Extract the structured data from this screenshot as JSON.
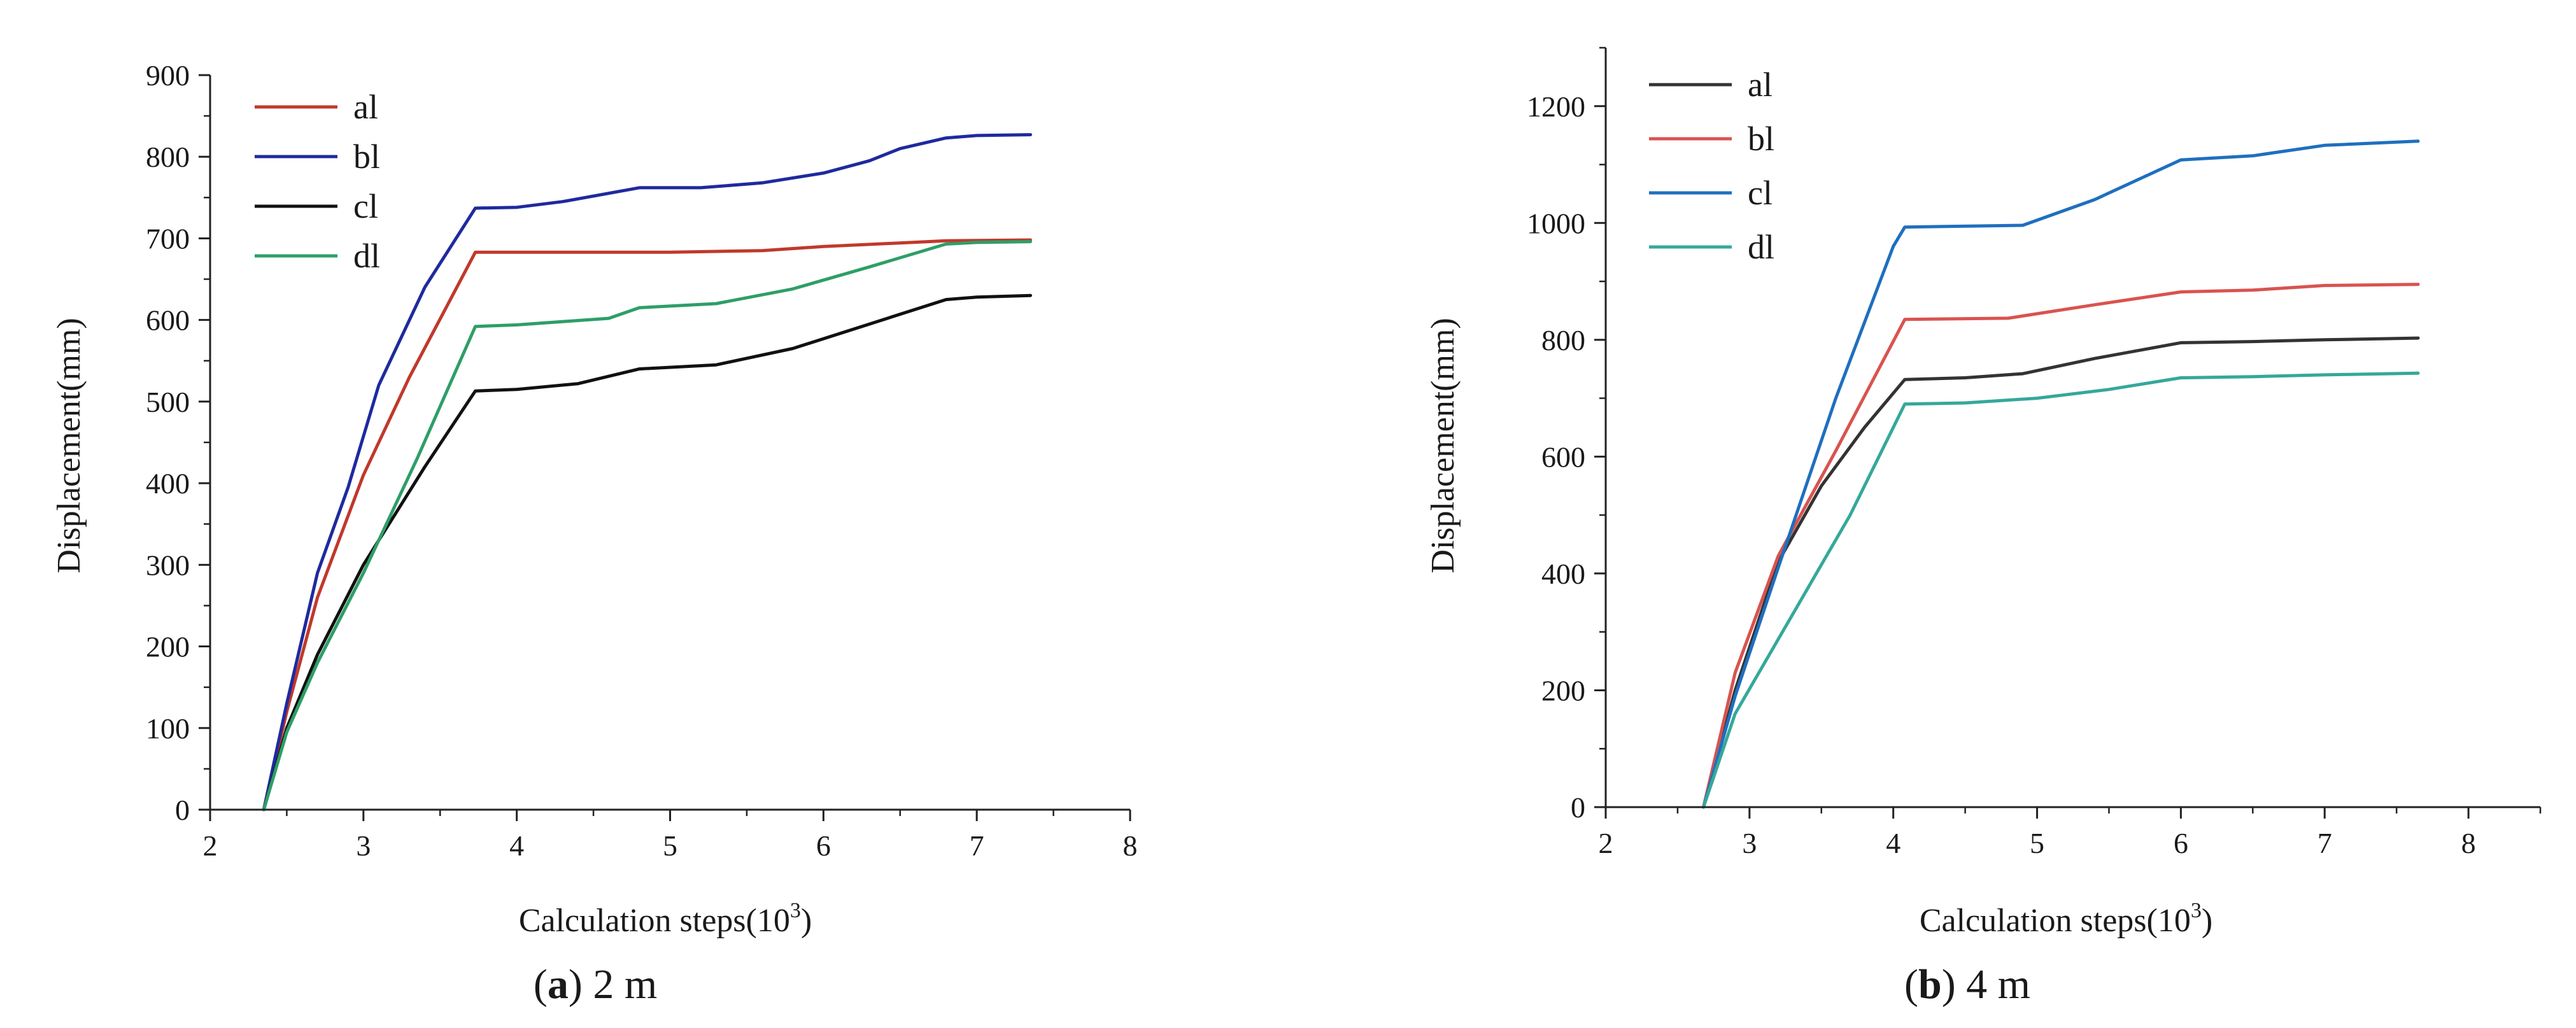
{
  "chart_data": [
    {
      "type": "line",
      "title": "",
      "caption_letter": "a",
      "caption_rest": " 2 m",
      "xlabel": "Calculation steps(10",
      "xlabel_exponent": "3",
      "xlabel_suffix": ")",
      "ylabel": "Displacement(mm)",
      "xlim": [
        2,
        8
      ],
      "ylim": [
        0,
        900
      ],
      "xticks": [
        2,
        3,
        4,
        5,
        6,
        7,
        8
      ],
      "yticks": [
        0,
        100,
        200,
        300,
        400,
        500,
        600,
        700,
        800,
        900
      ],
      "grid": false,
      "legend_position": "top-left",
      "series": [
        {
          "name": "al",
          "color": "#c0392b",
          "x": [
            2.35,
            2.5,
            2.7,
            3.0,
            3.3,
            3.73,
            4.0,
            5.0,
            5.6,
            6.0,
            6.8,
            7.35
          ],
          "values": [
            0,
            120,
            260,
            410,
            530,
            683,
            683,
            683,
            685,
            690,
            697,
            698
          ]
        },
        {
          "name": "bl",
          "color": "#1f2a9e",
          "x": [
            2.35,
            2.5,
            2.7,
            2.9,
            3.1,
            3.4,
            3.73,
            4.0,
            4.3,
            4.8,
            5.2,
            5.6,
            6.0,
            6.3,
            6.5,
            6.8,
            7.0,
            7.35
          ],
          "values": [
            0,
            130,
            290,
            395,
            520,
            640,
            737,
            738,
            745,
            762,
            762,
            768,
            780,
            795,
            810,
            823,
            826,
            827
          ]
        },
        {
          "name": "cl",
          "color": "#111111",
          "x": [
            2.35,
            2.5,
            2.7,
            3.0,
            3.4,
            3.73,
            4.0,
            4.4,
            4.8,
            5.3,
            5.8,
            6.3,
            6.8,
            7.0,
            7.35
          ],
          "values": [
            0,
            100,
            190,
            300,
            420,
            513,
            515,
            522,
            540,
            545,
            565,
            595,
            625,
            628,
            630
          ]
        },
        {
          "name": "dl",
          "color": "#2e9e68",
          "x": [
            2.35,
            2.5,
            2.7,
            3.0,
            3.35,
            3.73,
            4.0,
            4.6,
            4.8,
            5.3,
            5.8,
            6.3,
            6.8,
            7.0,
            7.35
          ],
          "values": [
            0,
            95,
            180,
            290,
            430,
            592,
            594,
            602,
            615,
            620,
            638,
            665,
            693,
            695,
            696
          ]
        }
      ]
    },
    {
      "type": "line",
      "title": "",
      "caption_letter": "b",
      "caption_rest": " 4 m",
      "xlabel": "Calculation steps(10",
      "xlabel_exponent": "3",
      "xlabel_suffix": ")",
      "ylabel": "Displacement(mm)",
      "xlim": [
        2,
        8.5
      ],
      "ylim": [
        0,
        1300
      ],
      "xticks": [
        2,
        3,
        4,
        5,
        6,
        7,
        8
      ],
      "yticks": [
        0,
        200,
        400,
        600,
        800,
        1000,
        1200
      ],
      "grid": false,
      "legend_position": "top-left",
      "series": [
        {
          "name": "al",
          "color": "#333333",
          "x": [
            2.68,
            2.9,
            3.2,
            3.5,
            3.8,
            4.08,
            4.5,
            4.9,
            5.4,
            6.0,
            6.5,
            7.0,
            7.65
          ],
          "values": [
            0,
            200,
            420,
            550,
            650,
            732,
            735,
            742,
            768,
            795,
            797,
            800,
            803
          ]
        },
        {
          "name": "bl",
          "color": "#d9534f",
          "x": [
            2.68,
            2.9,
            3.2,
            3.6,
            4.08,
            4.8,
            5.4,
            6.0,
            6.5,
            7.0,
            7.65
          ],
          "values": [
            0,
            230,
            430,
            610,
            835,
            837,
            860,
            882,
            885,
            893,
            895
          ]
        },
        {
          "name": "cl",
          "color": "#1f6fbf",
          "x": [
            2.68,
            2.9,
            3.2,
            3.6,
            4.0,
            4.08,
            4.9,
            5.4,
            6.0,
            6.5,
            7.0,
            7.65
          ],
          "values": [
            0,
            190,
            410,
            700,
            960,
            993,
            996,
            1040,
            1108,
            1115,
            1133,
            1140
          ]
        },
        {
          "name": "dl",
          "color": "#35a89a",
          "x": [
            2.68,
            2.9,
            3.3,
            3.7,
            4.08,
            4.5,
            5.0,
            5.5,
            6.0,
            6.5,
            7.0,
            7.65
          ],
          "values": [
            0,
            160,
            330,
            500,
            690,
            692,
            700,
            715,
            735,
            737,
            740,
            743
          ]
        }
      ]
    }
  ]
}
